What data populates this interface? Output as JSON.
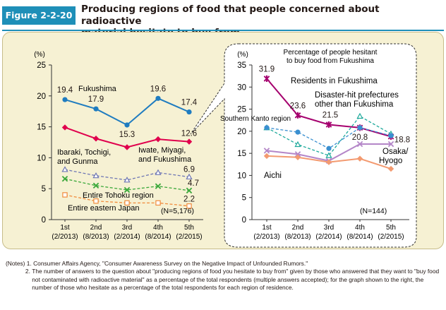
{
  "figure": {
    "label": "Figure 2-2-20",
    "title_line1": "Producing regions of food that people concerned about radioactive",
    "title_line2": "material hesitate to buy from"
  },
  "colors": {
    "accent": "#1e8fb8",
    "panel_bg": "#f6f1d3",
    "fukushima": "#1f7cc0",
    "iwate_miyagi": "#e0004d",
    "ibaraki": "#6f77b4",
    "tohoku": "#3aa83a",
    "eastern_japan": "#f08a3a",
    "residents_fukushima": "#a5006e",
    "disaster_hit": "#1da99b",
    "southern_kanto": "#3a8fd0",
    "osaka_hyogo": "#b486c8",
    "aichi": "#f39a70"
  },
  "chart_data": [
    {
      "type": "line",
      "title": "",
      "ylabel": "(%)",
      "xlabel": "",
      "ylim": [
        0,
        25
      ],
      "yticks": [
        "0",
        "5",
        "10",
        "15",
        "20",
        "25"
      ],
      "ytick_values": [
        0,
        5,
        10,
        15,
        20,
        25
      ],
      "categories": [
        "1st",
        "2nd",
        "3rd",
        "4th",
        "5th"
      ],
      "sublabels": [
        "(2/2013)",
        "(8/2013)",
        "(2/2014)",
        "(8/2014)",
        "(2/2015)"
      ],
      "n_label": "(N=5,176)",
      "series": [
        {
          "name": "Fukushima",
          "values": [
            19.4,
            17.9,
            15.3,
            19.6,
            17.4
          ],
          "labels": [
            "19.4",
            "17.9",
            "15.3",
            "19.6",
            "17.4"
          ],
          "marker": "circle",
          "dash": false
        },
        {
          "name": "Iwate, Miyagi, and Fukushima",
          "values": [
            14.9,
            13.1,
            11.7,
            13.0,
            12.6
          ],
          "labels": [
            "",
            "",
            "",
            "",
            "12.6"
          ],
          "marker": "diamond",
          "dash": false
        },
        {
          "name": "Ibaraki, Tochigi, and Gunma",
          "values": [
            8.1,
            7.1,
            6.4,
            7.6,
            6.9
          ],
          "labels": [
            "",
            "",
            "",
            "",
            "6.9"
          ],
          "marker": "triangle",
          "dash": true
        },
        {
          "name": "Entire Tohoku region",
          "values": [
            6.6,
            5.5,
            4.8,
            5.4,
            4.7
          ],
          "labels": [
            "",
            "",
            "",
            "",
            "4.7"
          ],
          "marker": "x",
          "dash": true
        },
        {
          "name": "Entire eastern Japan",
          "values": [
            4.0,
            3.0,
            2.7,
            2.7,
            2.2
          ],
          "labels": [
            "",
            "",
            "",
            "",
            "2.2"
          ],
          "marker": "square",
          "dash": true
        }
      ]
    },
    {
      "type": "line",
      "title": "Percentage of people hesitant to buy food from Fukushima",
      "title_line1": "Percentage of people hesitant",
      "title_line2": "to buy food from Fukushima",
      "ylabel": "(%)",
      "xlabel": "",
      "ylim": [
        0,
        35
      ],
      "yticks": [
        "0",
        "5",
        "10",
        "15",
        "20",
        "25",
        "30",
        "35"
      ],
      "ytick_values": [
        0,
        5,
        10,
        15,
        20,
        25,
        30,
        35
      ],
      "categories": [
        "1st",
        "2nd",
        "3rd",
        "4th",
        "5th"
      ],
      "sublabels": [
        "(2/2013)",
        "(8/2013)",
        "(2/2014)",
        "(8/2014)",
        "(2/2015)"
      ],
      "n_label": "(N=144)",
      "series": [
        {
          "name": "Residents in Fukushima",
          "values": [
            31.9,
            23.6,
            21.5,
            20.8,
            18.8
          ],
          "labels": [
            "31.9",
            "23.6",
            "21.5",
            "20.8",
            "18.8"
          ],
          "marker": "star",
          "dash": false
        },
        {
          "name": "Disaster-hit prefectures other than Fukushima",
          "values": [
            20.8,
            17.0,
            14.5,
            23.4,
            19.4
          ],
          "labels": [
            "",
            "",
            "",
            "",
            ""
          ],
          "marker": "triangle",
          "dash": true
        },
        {
          "name": "Southern Kanto region",
          "values": [
            20.8,
            19.8,
            16.1,
            20.8,
            19.0
          ],
          "labels": [
            "",
            "",
            "",
            "",
            ""
          ],
          "marker": "circle",
          "dash": true
        },
        {
          "name": "Osaka/Hyogo",
          "values": [
            15.6,
            14.8,
            13.3,
            17.1,
            17.1
          ],
          "labels": [
            "",
            "",
            "",
            "",
            ""
          ],
          "marker": "x",
          "dash": false
        },
        {
          "name": "Aichi",
          "values": [
            14.4,
            14.1,
            13.0,
            13.8,
            11.5
          ],
          "labels": [
            "",
            "",
            "",
            "",
            ""
          ],
          "marker": "diamond",
          "dash": false
        }
      ]
    }
  ],
  "annotations": {
    "left": {
      "fukushima": "Fukushima",
      "iwate_line1": "Iwate, Miyagi,",
      "iwate_line2": "and Fukushima",
      "ibaraki_line1": "Ibaraki, Tochigi,",
      "ibaraki_line2": "and Gunma",
      "tohoku": "Entire Tohoku region",
      "eastern": "Entire eastern Japan"
    },
    "right": {
      "residents": "Residents in Fukushima",
      "disaster_line1": "Disaster-hit prefectures",
      "disaster_line2": "other than Fukushima",
      "kanto": "Southern Kanto region",
      "osaka_line1": "Osaka/",
      "osaka_line2": "Hyogo",
      "aichi": "Aichi"
    }
  },
  "notes": [
    {
      "num": "(Notes) 1. ",
      "text": "Consumer Affairs Agency, \"Consumer Awareness Survey on the Negative Impact of Unfounded Rumors.\""
    },
    {
      "num": "            2. ",
      "text": "The number of answers to the question about \"producing regions of food you hesitate to buy from\" given by those who answered that they want to \"buy food not contaminated with radioactive material\" as a percentage of the total respondents (multiple answers accepted); for the graph shown to the right, the number of those who hesitate as a percentage of the total respondents for each region of residence."
    }
  ]
}
